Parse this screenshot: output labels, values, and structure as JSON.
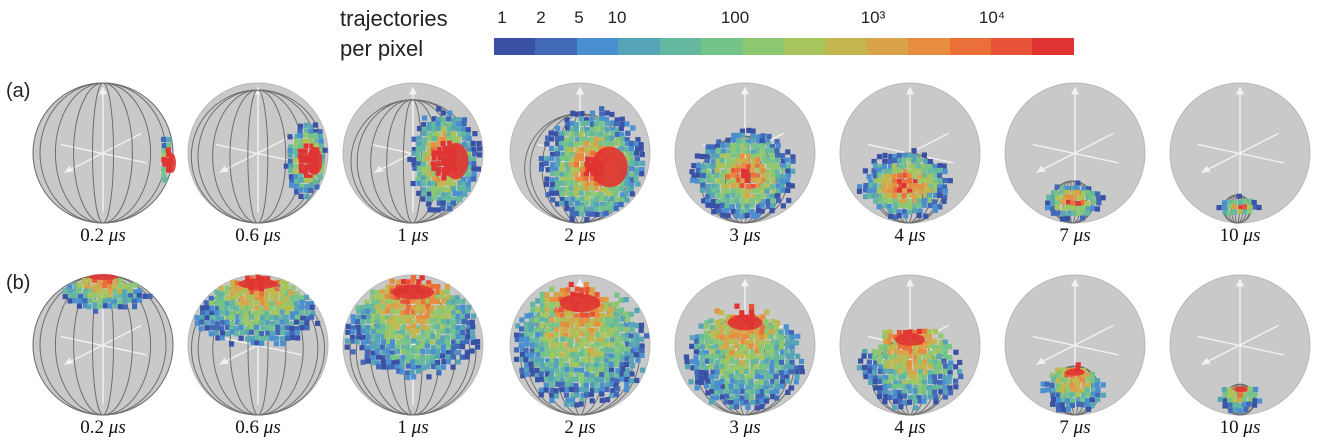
{
  "legend": {
    "title_line1": "trajectories",
    "title_line2": "per pixel",
    "ticks": [
      "1",
      "2",
      "5",
      "10",
      "100",
      "10³",
      "10⁴"
    ],
    "colors": [
      "#3a52a5",
      "#4169b8",
      "#4a8fd0",
      "#55a5b6",
      "#64b8a0",
      "#74c48a",
      "#8dc870",
      "#a8c45c",
      "#c4b64e",
      "#daa34a",
      "#e68d3e",
      "#ea6f38",
      "#e85236",
      "#e03432"
    ]
  },
  "rows": [
    {
      "label": "(a)",
      "panels": [
        {
          "value": "0.2",
          "unit": "μs"
        },
        {
          "value": "0.6",
          "unit": "μs"
        },
        {
          "value": "1",
          "unit": "μs"
        },
        {
          "value": "2",
          "unit": "μs"
        },
        {
          "value": "3",
          "unit": "μs"
        },
        {
          "value": "4",
          "unit": "μs"
        },
        {
          "value": "7",
          "unit": "μs"
        },
        {
          "value": "10",
          "unit": "μs"
        }
      ]
    },
    {
      "label": "(b)",
      "panels": [
        {
          "value": "0.2",
          "unit": "μs"
        },
        {
          "value": "0.6",
          "unit": "μs"
        },
        {
          "value": "1",
          "unit": "μs"
        },
        {
          "value": "2",
          "unit": "μs"
        },
        {
          "value": "3",
          "unit": "μs"
        },
        {
          "value": "4",
          "unit": "μs"
        },
        {
          "value": "7",
          "unit": "μs"
        },
        {
          "value": "10",
          "unit": "μs"
        }
      ]
    }
  ]
}
